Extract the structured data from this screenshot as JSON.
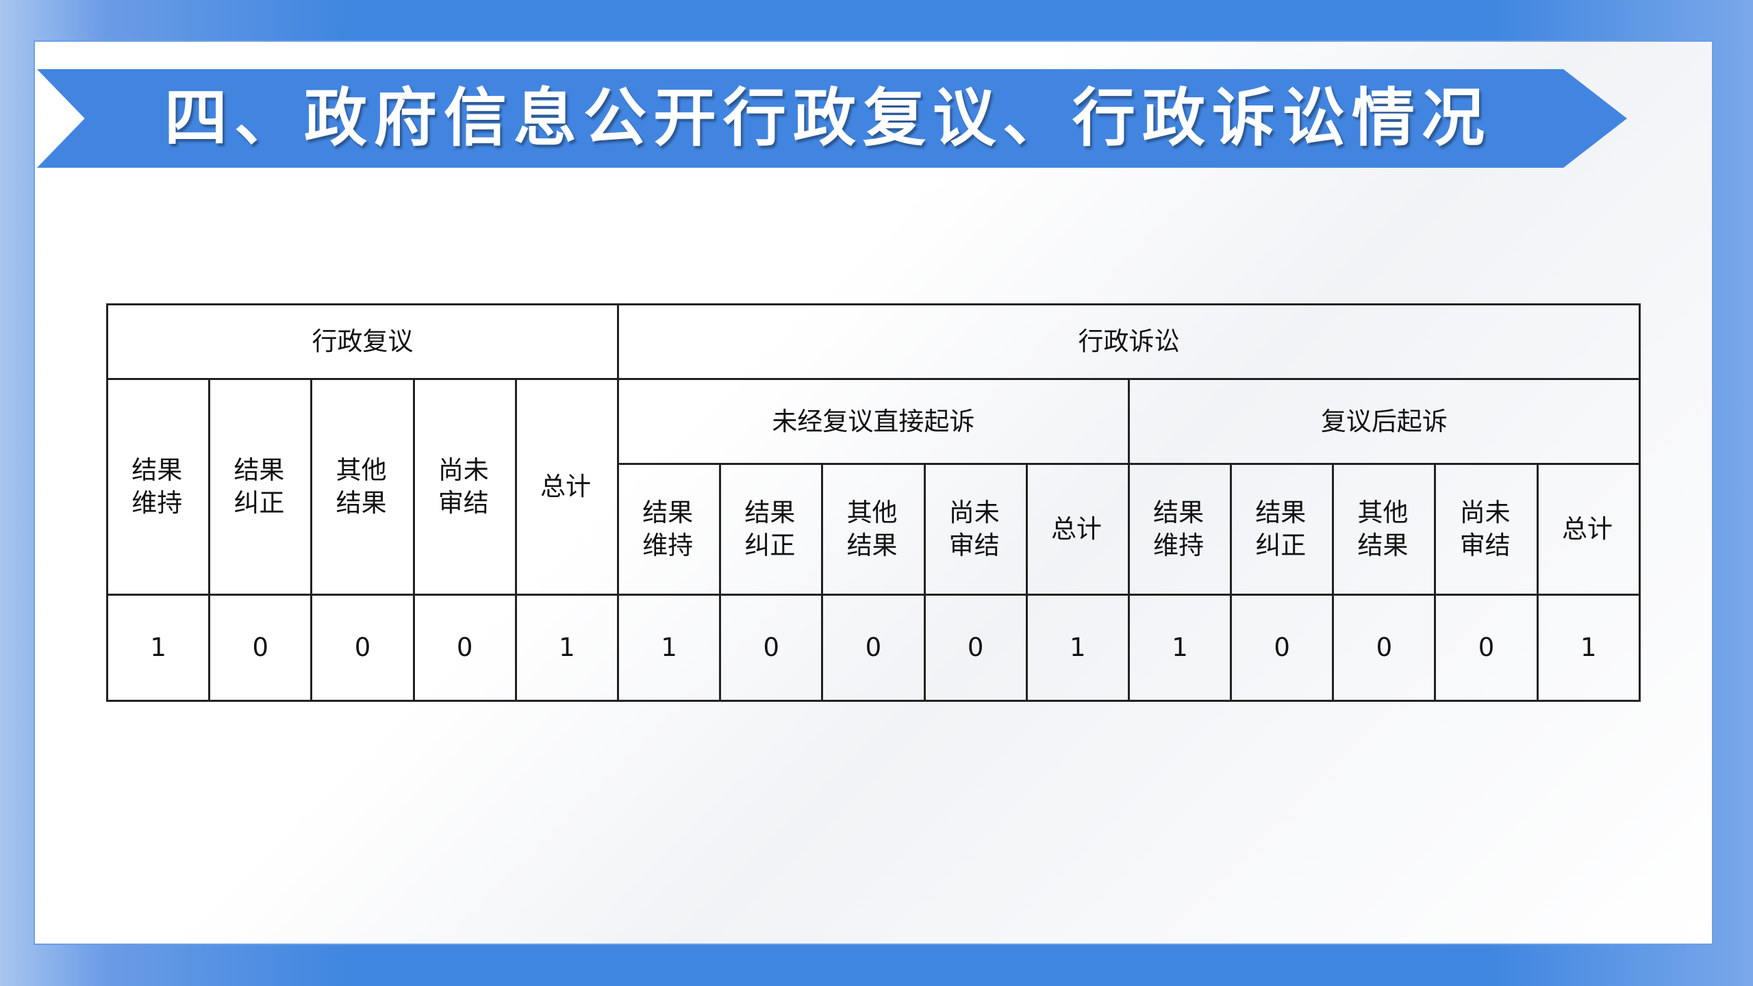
{
  "title": "四、政府信息公开行政复议、行政诉讼情况",
  "table": {
    "group_review": "行政复议",
    "group_litigation": "行政诉讼",
    "sub_direct": "未经复议直接起诉",
    "sub_after": "复议后起诉",
    "review_cols": [
      "结果维持",
      "结果纠正",
      "其他结果",
      "尚未审结",
      "总计"
    ],
    "direct_cols": [
      "结果维持",
      "结果纠正",
      "其他结果",
      "尚未审结",
      "总计"
    ],
    "after_cols": [
      "结果维持",
      "结果纠正",
      "其他结果",
      "尚未审结",
      "总计"
    ],
    "values": [
      "1",
      "0",
      "0",
      "0",
      "1",
      "1",
      "0",
      "0",
      "0",
      "1",
      "1",
      "0",
      "0",
      "0",
      "1"
    ]
  },
  "colors": {
    "accent": "#4285e0"
  }
}
